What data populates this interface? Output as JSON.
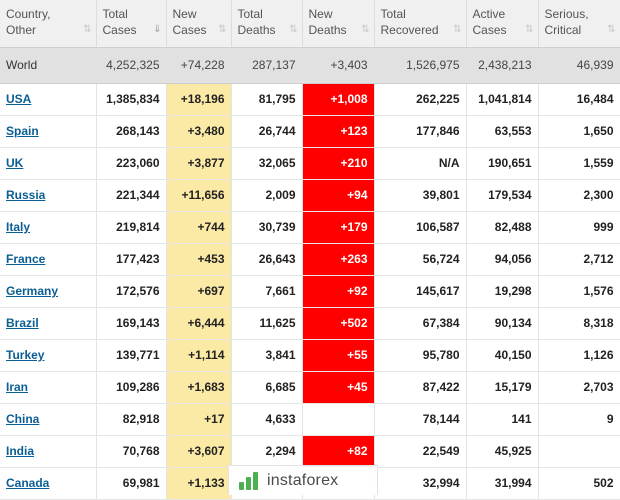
{
  "headers": [
    {
      "label1": "Country,",
      "label2": "Other",
      "sort": "⇅",
      "active": false
    },
    {
      "label1": "Total",
      "label2": "Cases",
      "sort": "⇓",
      "active": true
    },
    {
      "label1": "New",
      "label2": "Cases",
      "sort": "⇅",
      "active": false
    },
    {
      "label1": "Total",
      "label2": "Deaths",
      "sort": "⇅",
      "active": false
    },
    {
      "label1": "New",
      "label2": "Deaths",
      "sort": "⇅",
      "active": false
    },
    {
      "label1": "Total",
      "label2": "Recovered",
      "sort": "⇅",
      "active": false
    },
    {
      "label1": "Active",
      "label2": "Cases",
      "sort": "⇅",
      "active": false
    },
    {
      "label1": "Serious,",
      "label2": "Critical",
      "sort": "⇅",
      "active": false
    }
  ],
  "world": {
    "country": "World",
    "total_cases": "4,252,325",
    "new_cases": "+74,228",
    "total_deaths": "287,137",
    "new_deaths": "+3,403",
    "total_recovered": "1,526,975",
    "active_cases": "2,438,213",
    "serious": "46,939"
  },
  "rows": [
    {
      "country": "USA",
      "total_cases": "1,385,834",
      "new_cases": "+18,196",
      "total_deaths": "81,795",
      "new_deaths": "+1,008",
      "total_recovered": "262,225",
      "active_cases": "1,041,814",
      "serious": "16,484"
    },
    {
      "country": "Spain",
      "total_cases": "268,143",
      "new_cases": "+3,480",
      "total_deaths": "26,744",
      "new_deaths": "+123",
      "total_recovered": "177,846",
      "active_cases": "63,553",
      "serious": "1,650"
    },
    {
      "country": "UK",
      "total_cases": "223,060",
      "new_cases": "+3,877",
      "total_deaths": "32,065",
      "new_deaths": "+210",
      "total_recovered": "N/A",
      "active_cases": "190,651",
      "serious": "1,559"
    },
    {
      "country": "Russia",
      "total_cases": "221,344",
      "new_cases": "+11,656",
      "total_deaths": "2,009",
      "new_deaths": "+94",
      "total_recovered": "39,801",
      "active_cases": "179,534",
      "serious": "2,300"
    },
    {
      "country": "Italy",
      "total_cases": "219,814",
      "new_cases": "+744",
      "total_deaths": "30,739",
      "new_deaths": "+179",
      "total_recovered": "106,587",
      "active_cases": "82,488",
      "serious": "999"
    },
    {
      "country": "France",
      "total_cases": "177,423",
      "new_cases": "+453",
      "total_deaths": "26,643",
      "new_deaths": "+263",
      "total_recovered": "56,724",
      "active_cases": "94,056",
      "serious": "2,712"
    },
    {
      "country": "Germany",
      "total_cases": "172,576",
      "new_cases": "+697",
      "total_deaths": "7,661",
      "new_deaths": "+92",
      "total_recovered": "145,617",
      "active_cases": "19,298",
      "serious": "1,576"
    },
    {
      "country": "Brazil",
      "total_cases": "169,143",
      "new_cases": "+6,444",
      "total_deaths": "11,625",
      "new_deaths": "+502",
      "total_recovered": "67,384",
      "active_cases": "90,134",
      "serious": "8,318"
    },
    {
      "country": "Turkey",
      "total_cases": "139,771",
      "new_cases": "+1,114",
      "total_deaths": "3,841",
      "new_deaths": "+55",
      "total_recovered": "95,780",
      "active_cases": "40,150",
      "serious": "1,126"
    },
    {
      "country": "Iran",
      "total_cases": "109,286",
      "new_cases": "+1,683",
      "total_deaths": "6,685",
      "new_deaths": "+45",
      "total_recovered": "87,422",
      "active_cases": "15,179",
      "serious": "2,703"
    },
    {
      "country": "China",
      "total_cases": "82,918",
      "new_cases": "+17",
      "total_deaths": "4,633",
      "new_deaths": "",
      "total_recovered": "78,144",
      "active_cases": "141",
      "serious": "9"
    },
    {
      "country": "India",
      "total_cases": "70,768",
      "new_cases": "+3,607",
      "total_deaths": "2,294",
      "new_deaths": "+82",
      "total_recovered": "22,549",
      "active_cases": "45,925",
      "serious": ""
    },
    {
      "country": "Canada",
      "total_cases": "69,981",
      "new_cases": "+1,133",
      "total_deaths": "",
      "new_deaths": "",
      "total_recovered": "32,994",
      "active_cases": "31,994",
      "serious": "502"
    }
  ],
  "watermark": {
    "text": "instaforex"
  },
  "colors": {
    "new_cases_bg": "#fbeaa6",
    "new_deaths_bg": "#ff0000",
    "link": "#0b5e93",
    "header_bg": "#f0f0f0",
    "world_bg": "#e1e1e1"
  }
}
